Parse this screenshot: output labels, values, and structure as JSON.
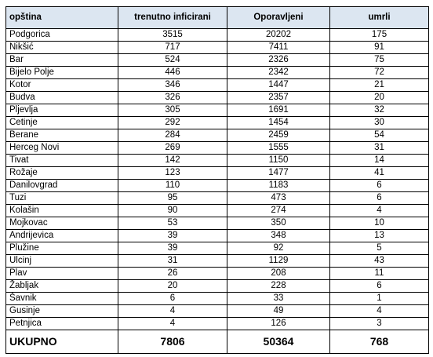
{
  "table": {
    "header": [
      "opština",
      "trenutno inficirani",
      "Oporavljeni",
      "umrli"
    ],
    "rows": [
      [
        "Podgorica",
        3515,
        20202,
        175
      ],
      [
        "Nikšić",
        717,
        7411,
        91
      ],
      [
        "Bar",
        524,
        2326,
        75
      ],
      [
        "Bijelo Polje",
        446,
        2342,
        72
      ],
      [
        "Kotor",
        346,
        1447,
        21
      ],
      [
        "Budva",
        326,
        2357,
        20
      ],
      [
        "Pljevlja",
        305,
        1691,
        32
      ],
      [
        "Cetinje",
        292,
        1454,
        30
      ],
      [
        "Berane",
        284,
        2459,
        54
      ],
      [
        "Herceg Novi",
        269,
        1555,
        31
      ],
      [
        "Tivat",
        142,
        1150,
        14
      ],
      [
        "Rožaje",
        123,
        1477,
        41
      ],
      [
        "Danilovgrad",
        110,
        1183,
        6
      ],
      [
        "Tuzi",
        95,
        473,
        6
      ],
      [
        "Kolašin",
        90,
        274,
        4
      ],
      [
        "Mojkovac",
        53,
        350,
        10
      ],
      [
        "Andrijevica",
        39,
        348,
        13
      ],
      [
        "Plužine",
        39,
        92,
        5
      ],
      [
        "Ulcinj",
        31,
        1129,
        43
      ],
      [
        "Plav",
        26,
        208,
        11
      ],
      [
        "Žabljak",
        20,
        228,
        6
      ],
      [
        "Šavnik",
        6,
        33,
        1
      ],
      [
        "Gusinje",
        4,
        49,
        4
      ],
      [
        "Petnjica",
        4,
        126,
        3
      ]
    ],
    "total": [
      "UKUPNO",
      7806,
      50364,
      768
    ]
  }
}
